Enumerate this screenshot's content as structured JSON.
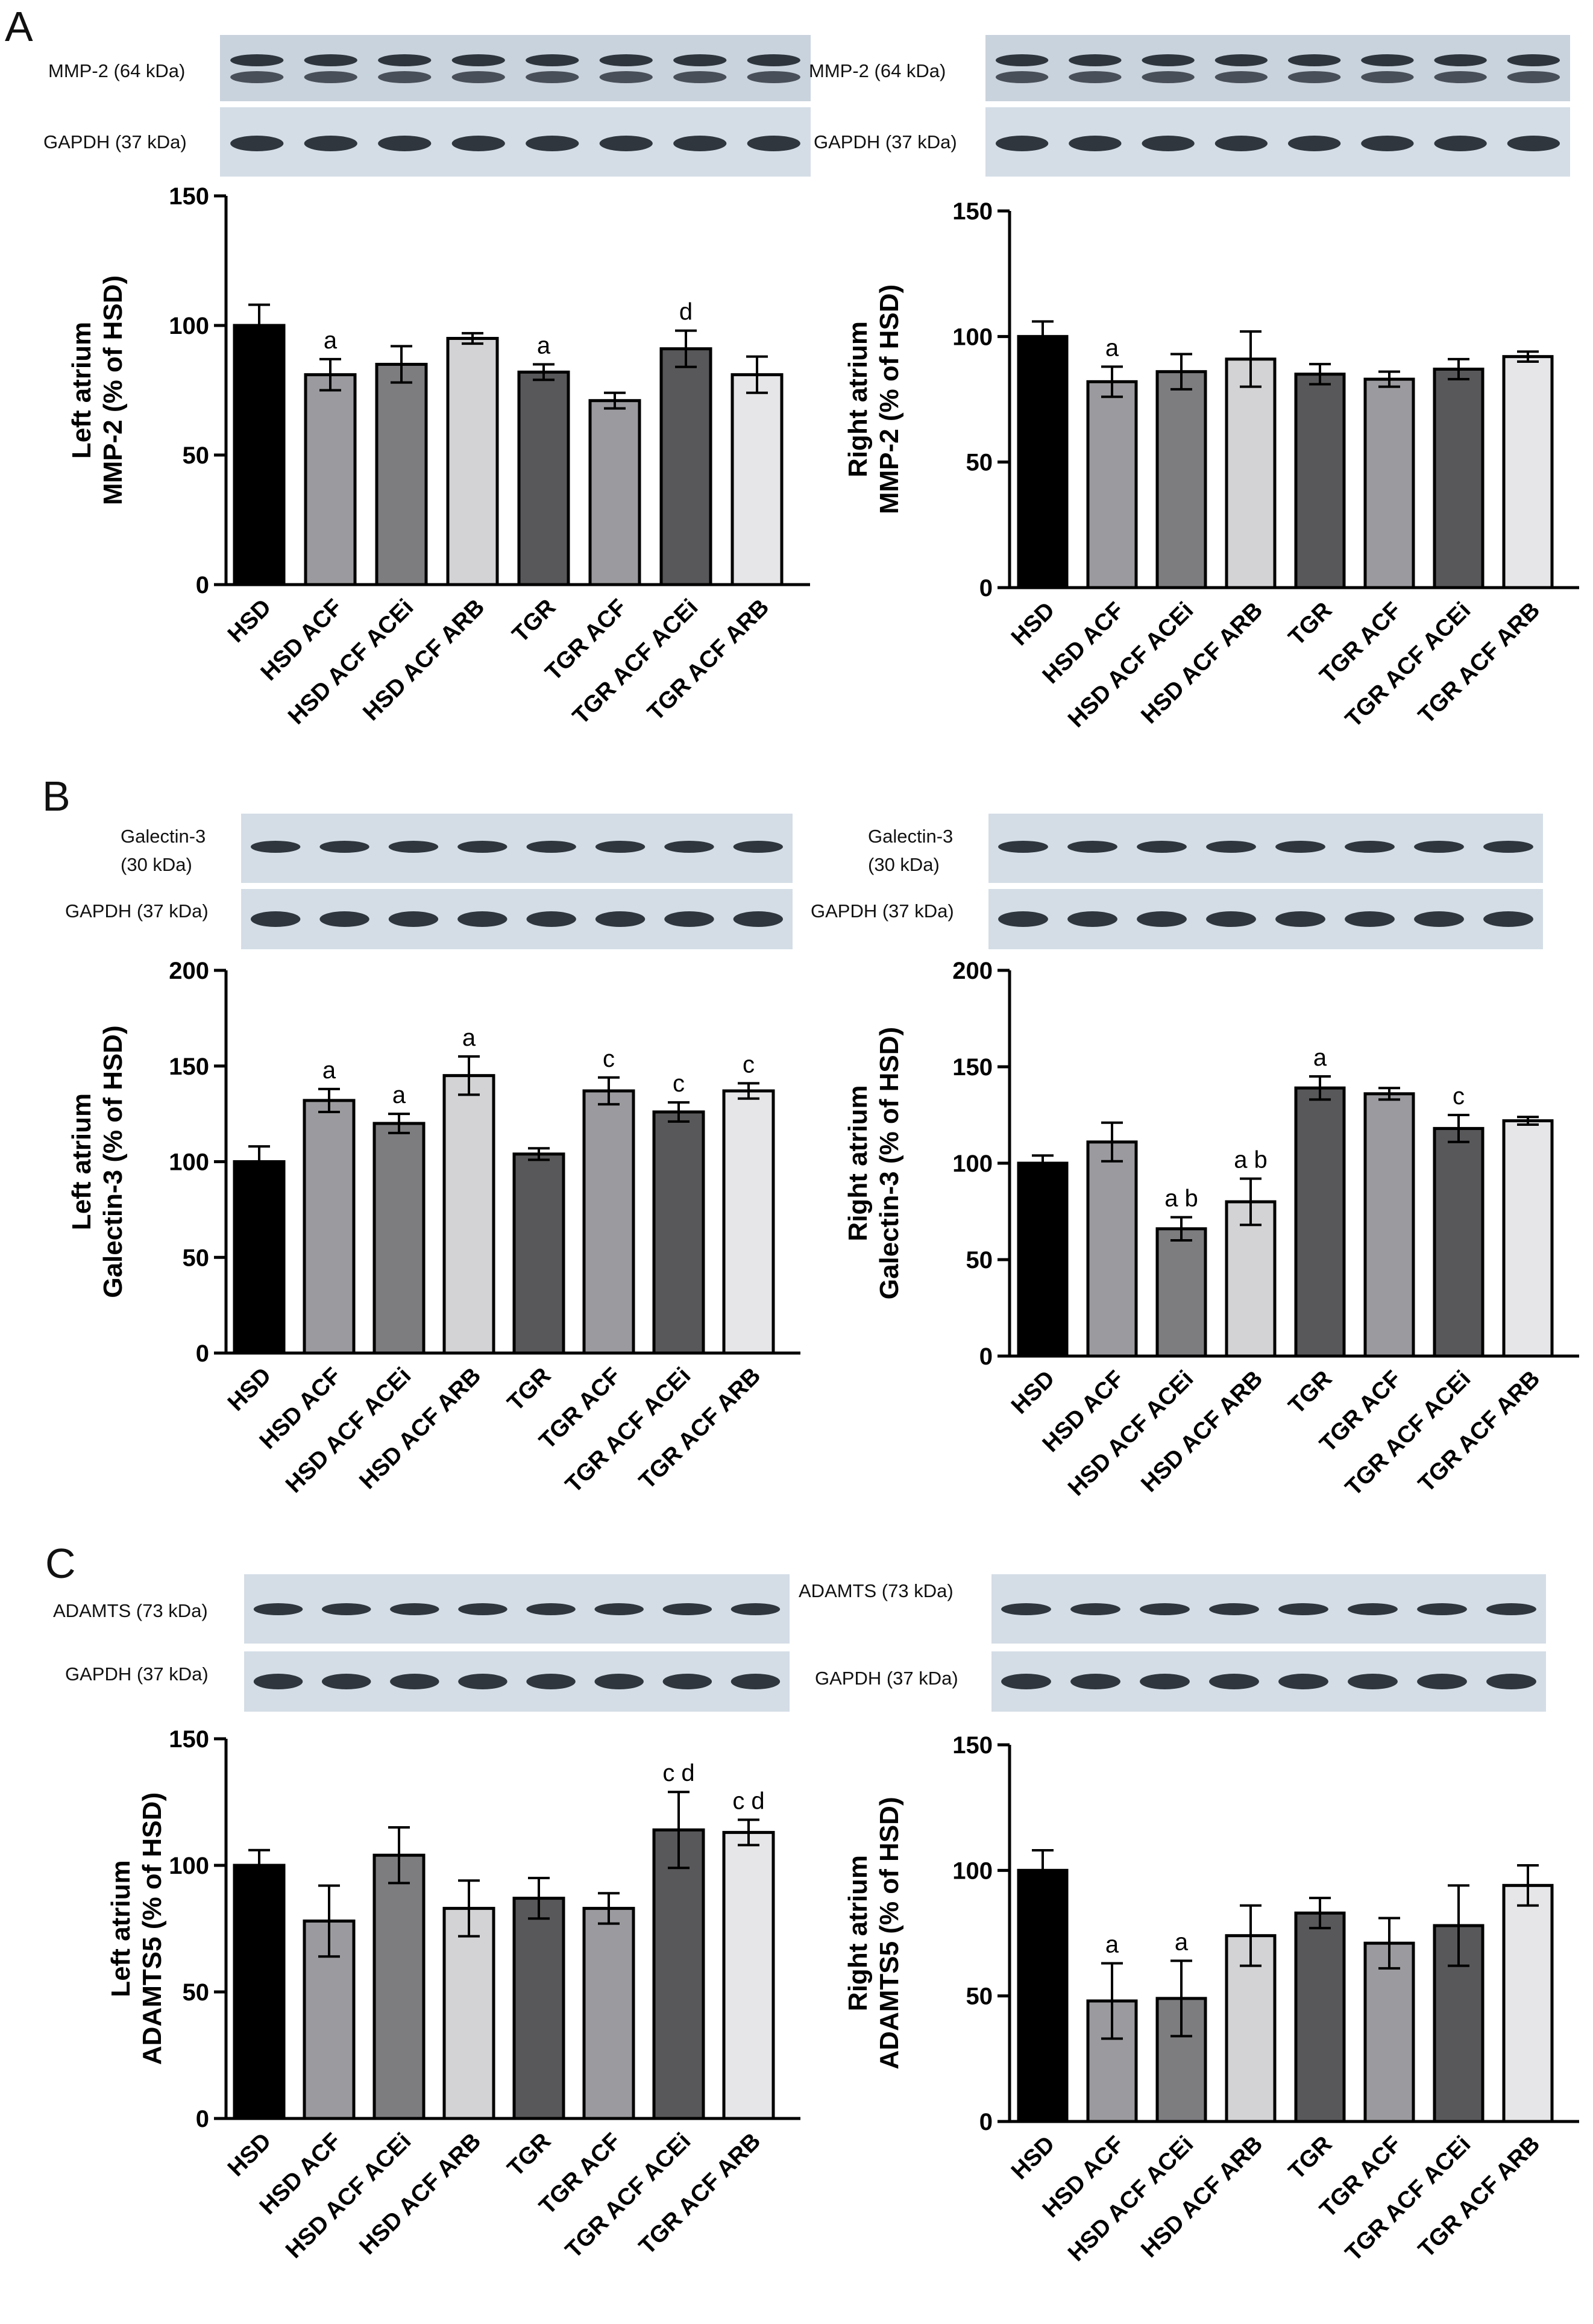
{
  "panels": [
    {
      "letter": "A",
      "blots": {
        "left": {
          "protein": "MMP-2 (64 kDa)",
          "control": "GAPDH (37 kDa)"
        },
        "right": {
          "protein": "MMP-2 (64 kDa)",
          "control": "GAPDH (37 kDa)"
        }
      }
    },
    {
      "letter": "B",
      "blots": {
        "left": {
          "protein_line1": "Galectin-3",
          "protein_line2": "(30 kDa)",
          "control": "GAPDH (37 kDa)"
        },
        "right": {
          "protein_line1": "Galectin-3",
          "protein_line2": "(30 kDa)",
          "control": "GAPDH (37 kDa)"
        }
      }
    },
    {
      "letter": "C",
      "blots": {
        "left": {
          "protein": "ADAMTS (73 kDa)",
          "control": "GAPDH (37 kDa)"
        },
        "right": {
          "protein": "ADAMTS (73 kDa)",
          "control": "GAPDH (37 kDa)"
        }
      }
    }
  ],
  "bar_colors": [
    "#000000",
    "#9b9b9f",
    "#7d7d80",
    "#d3d3d5",
    "#58585a",
    "#9b9b9f",
    "#58585a",
    "#e6e6e8"
  ],
  "chart_data": [
    {
      "id": "A-left",
      "type": "bar",
      "ylabel_line1": "Left atrium",
      "ylabel_line2": "MMP-2 (% of HSD)",
      "categories": [
        "HSD",
        "HSD ACF",
        "HSD ACF ACEi",
        "HSD ACF ARB",
        "TGR",
        "TGR ACF",
        "TGR ACF ACEi",
        "TGR ACF ARB"
      ],
      "values": [
        100,
        81,
        85,
        95,
        82,
        71,
        91,
        81
      ],
      "errors": [
        8,
        6,
        7,
        2,
        3,
        3,
        7,
        7
      ],
      "annotations": [
        "",
        "a",
        "",
        "",
        "a",
        "",
        "d",
        ""
      ],
      "ylim": [
        0,
        150
      ],
      "yticks": [
        0,
        50,
        100,
        150
      ]
    },
    {
      "id": "A-right",
      "type": "bar",
      "ylabel_line1": "Right atrium",
      "ylabel_line2": "MMP-2 (% of HSD)",
      "categories": [
        "HSD",
        "HSD ACF",
        "HSD ACF ACEi",
        "HSD ACF ARB",
        "TGR",
        "TGR ACF",
        "TGR ACF ACEi",
        "TGR ACF ARB"
      ],
      "values": [
        100,
        82,
        86,
        91,
        85,
        83,
        87,
        92
      ],
      "errors": [
        6,
        6,
        7,
        11,
        4,
        3,
        4,
        2
      ],
      "annotations": [
        "",
        "a",
        "",
        "",
        "",
        "",
        "",
        ""
      ],
      "ylim": [
        0,
        150
      ],
      "yticks": [
        0,
        50,
        100,
        150
      ]
    },
    {
      "id": "B-left",
      "type": "bar",
      "ylabel_line1": "Left atrium",
      "ylabel_line2": "Galectin-3 (% of HSD)",
      "categories": [
        "HSD",
        "HSD ACF",
        "HSD ACF ACEi",
        "HSD ACF ARB",
        "TGR",
        "TGR ACF",
        "TGR ACF ACEi",
        "TGR ACF ARB"
      ],
      "values": [
        100,
        132,
        120,
        145,
        104,
        137,
        126,
        137
      ],
      "errors": [
        8,
        6,
        5,
        10,
        3,
        7,
        5,
        4
      ],
      "annotations": [
        "",
        "a",
        "a",
        "a",
        "",
        "c",
        "c",
        "c"
      ],
      "ylim": [
        0,
        200
      ],
      "yticks": [
        0,
        50,
        100,
        150,
        200
      ]
    },
    {
      "id": "B-right",
      "type": "bar",
      "ylabel_line1": "Right atrium",
      "ylabel_line2": "Galectin-3 (% of HSD)",
      "categories": [
        "HSD",
        "HSD ACF",
        "HSD ACF ACEi",
        "HSD ACF ARB",
        "TGR",
        "TGR ACF",
        "TGR ACF ACEi",
        "TGR ACF ARB"
      ],
      "values": [
        100,
        111,
        66,
        80,
        139,
        136,
        118,
        122
      ],
      "errors": [
        4,
        10,
        6,
        12,
        6,
        3,
        7,
        2
      ],
      "annotations": [
        "",
        "",
        "a b",
        "a b",
        "a",
        "",
        "c",
        ""
      ],
      "ylim": [
        0,
        200
      ],
      "yticks": [
        0,
        50,
        100,
        150,
        200
      ]
    },
    {
      "id": "C-left",
      "type": "bar",
      "ylabel_line1": "Left atrium",
      "ylabel_line2": "ADAMTS5 (% of HSD)",
      "categories": [
        "HSD",
        "HSD ACF",
        "HSD ACF ACEi",
        "HSD ACF ARB",
        "TGR",
        "TGR ACF",
        "TGR ACF ACEi",
        "TGR ACF ARB"
      ],
      "values": [
        100,
        78,
        104,
        83,
        87,
        83,
        114,
        113
      ],
      "errors": [
        6,
        14,
        11,
        11,
        8,
        6,
        15,
        5
      ],
      "annotations": [
        "",
        "",
        "",
        "",
        "",
        "",
        "c d",
        "c d"
      ],
      "ylim": [
        0,
        150
      ],
      "yticks": [
        0,
        50,
        100,
        150
      ]
    },
    {
      "id": "C-right",
      "type": "bar",
      "ylabel_line1": "Right atrium",
      "ylabel_line2": "ADAMTS5 (% of HSD)",
      "categories": [
        "HSD",
        "HSD ACF",
        "HSD ACF ACEi",
        "HSD ACF ARB",
        "TGR",
        "TGR ACF",
        "TGR ACF ACEi",
        "TGR ACF ARB"
      ],
      "values": [
        100,
        48,
        49,
        74,
        83,
        71,
        78,
        94
      ],
      "errors": [
        8,
        15,
        15,
        12,
        6,
        10,
        16,
        8
      ],
      "annotations": [
        "",
        "a",
        "a",
        "",
        "",
        "",
        "",
        ""
      ],
      "ylim": [
        0,
        150
      ],
      "yticks": [
        0,
        50,
        100,
        150
      ]
    }
  ]
}
